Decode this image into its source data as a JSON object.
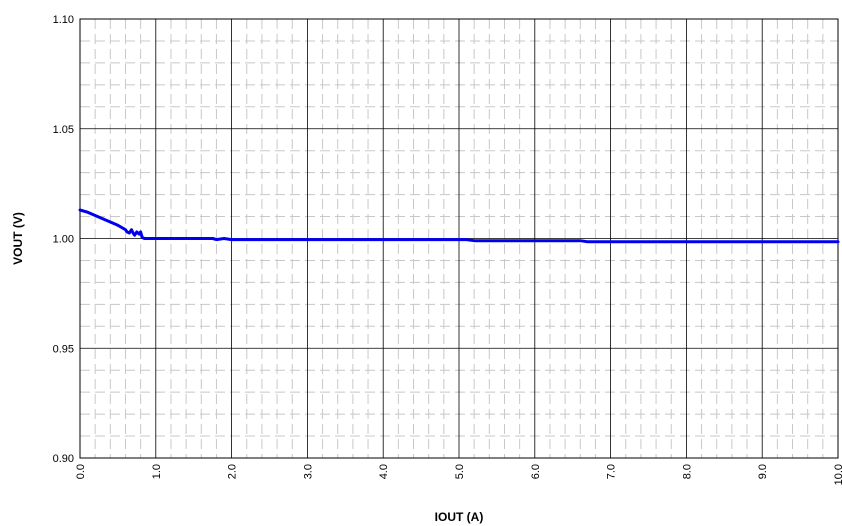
{
  "chart_data": {
    "type": "line",
    "title": "",
    "xlabel": "IOUT (A)",
    "ylabel": "VOUT (V)",
    "xlim": [
      0,
      10
    ],
    "ylim": [
      0.9,
      1.1
    ],
    "x_ticks": [
      "0.0",
      "1.0",
      "2.0",
      "3.0",
      "4.0",
      "5.0",
      "6.0",
      "7.0",
      "8.0",
      "9.0",
      "10.0"
    ],
    "y_ticks": [
      "0.90",
      "0.95",
      "1.00",
      "1.05",
      "1.10"
    ],
    "grid": true,
    "minor_grid": true,
    "legend": "none",
    "series": [
      {
        "color": "#0000ee",
        "x": [
          0.0,
          0.1,
          0.2,
          0.3,
          0.4,
          0.5,
          0.55,
          0.6,
          0.62,
          0.65,
          0.68,
          0.7,
          0.72,
          0.75,
          0.78,
          0.8,
          0.82,
          0.85,
          1.0,
          1.5,
          1.75,
          1.8,
          1.9,
          2.0,
          3.0,
          4.0,
          5.0,
          5.1,
          5.2,
          6.0,
          6.6,
          6.7,
          7.0,
          8.0,
          9.0,
          10.0
        ],
        "y": [
          1.013,
          1.012,
          1.0105,
          1.009,
          1.0075,
          1.006,
          1.005,
          1.004,
          1.003,
          1.0025,
          1.004,
          1.0025,
          1.0015,
          1.003,
          1.002,
          1.003,
          1.0005,
          1.0,
          1.0,
          1.0,
          1.0,
          0.9995,
          1.0,
          0.9995,
          0.9995,
          0.9995,
          0.9995,
          0.9995,
          0.999,
          0.999,
          0.999,
          0.9985,
          0.9985,
          0.9985,
          0.9985,
          0.9985
        ]
      }
    ]
  }
}
